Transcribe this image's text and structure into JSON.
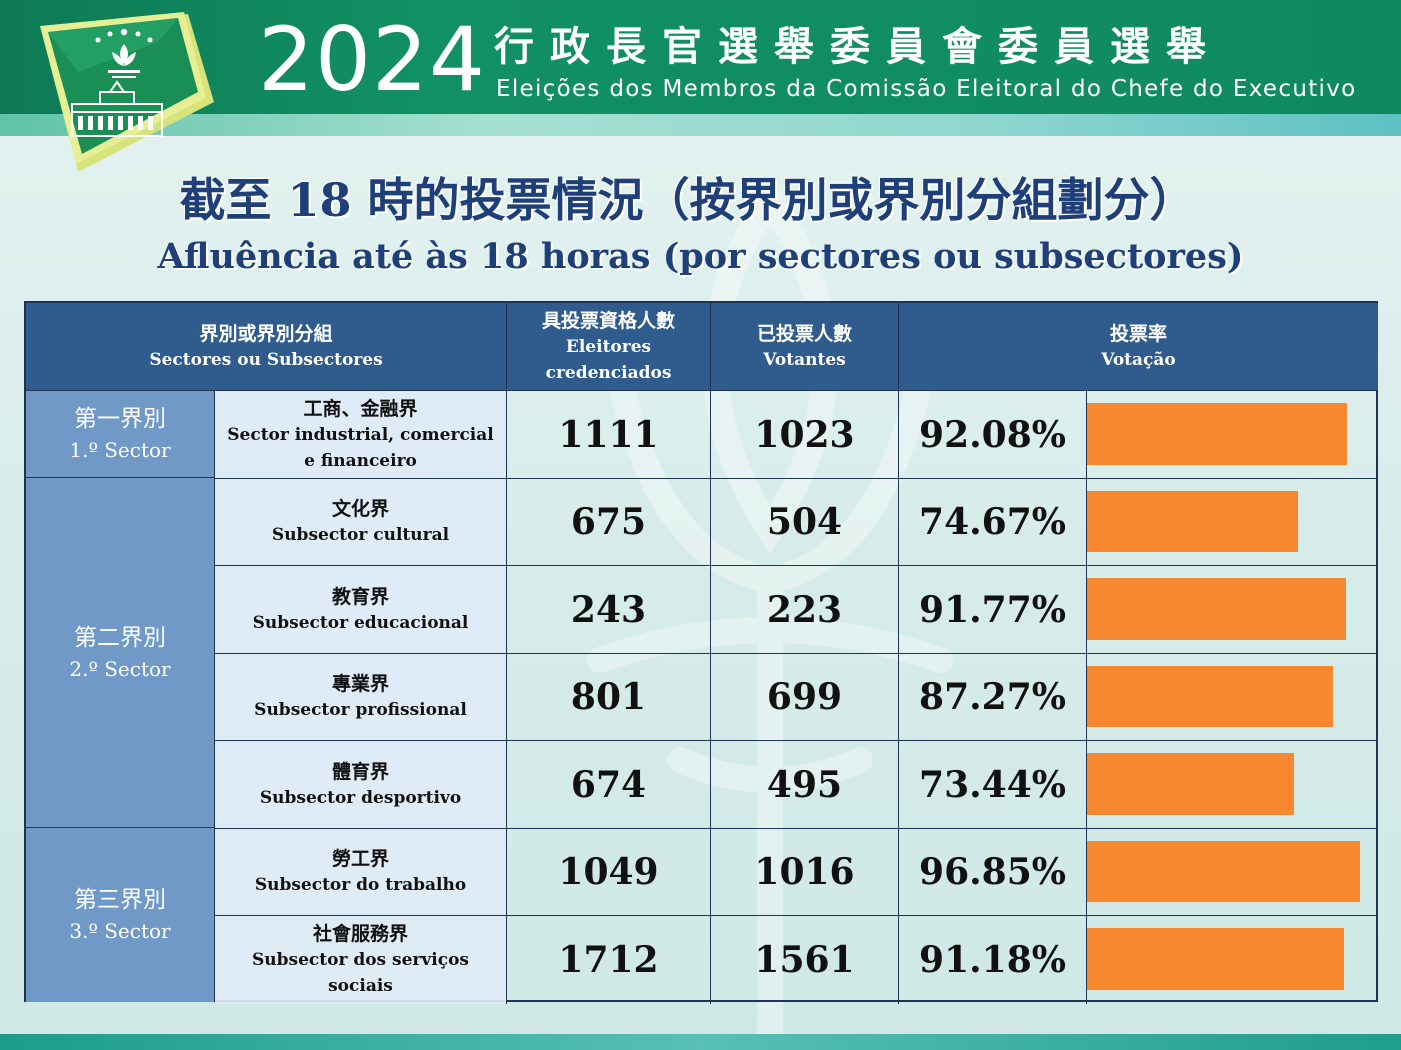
{
  "header": {
    "year": "2024",
    "title_zh": "行政長官選舉委員會委員選舉",
    "title_pt": "Eleições dos Membros da Comissão Eleitoral do Chefe do Executivo"
  },
  "heading": {
    "zh": "截至 18 時的投票情況（按界別或界別分組劃分）",
    "pt": "Afluência até às 18 horas (por sectores ou subsectores)"
  },
  "columns": {
    "sector": {
      "zh": "界別或界別分組",
      "pt": "Sectores ou Subsectores"
    },
    "electors": {
      "zh": "具投票資格人數",
      "pt1": "Eleitores",
      "pt2": "credenciados"
    },
    "voters": {
      "zh": "已投票人數",
      "pt": "Votantes"
    },
    "turnout": {
      "zh": "投票率",
      "pt": "Votação"
    }
  },
  "sectors": [
    {
      "zh": "第一界別",
      "pt": "1.º Sector"
    },
    {
      "zh": "第二界別",
      "pt": "2.º Sector"
    },
    {
      "zh": "第三界別",
      "pt": "3.º Sector"
    }
  ],
  "rows": [
    {
      "zh": "工商、金融界",
      "pt": "Sector industrial, comercial e financeiro",
      "electors": "1111",
      "voters": "1023",
      "rate": "92.08%"
    },
    {
      "zh": "文化界",
      "pt": "Subsector cultural",
      "electors": "675",
      "voters": "504",
      "rate": "74.67%"
    },
    {
      "zh": "教育界",
      "pt": "Subsector educacional",
      "electors": "243",
      "voters": "223",
      "rate": "91.77%"
    },
    {
      "zh": "專業界",
      "pt": "Subsector profissional",
      "electors": "801",
      "voters": "699",
      "rate": "87.27%"
    },
    {
      "zh": "體育界",
      "pt": "Subsector desportivo",
      "electors": "674",
      "voters": "495",
      "rate": "73.44%"
    },
    {
      "zh": "勞工界",
      "pt": "Subsector do trabalho",
      "electors": "1049",
      "voters": "1016",
      "rate": "96.85%"
    },
    {
      "zh": "社會服務界",
      "pt": "Subsector dos serviços sociais",
      "electors": "1712",
      "voters": "1561",
      "rate": "91.18%"
    }
  ],
  "chart_data": {
    "type": "bar",
    "categories": [
      "工商、金融界",
      "文化界",
      "教育界",
      "專業界",
      "體育界",
      "勞工界",
      "社會服務界"
    ],
    "values": [
      92.08,
      74.67,
      91.77,
      87.27,
      73.44,
      96.85,
      91.18
    ],
    "ylim": [
      0,
      100
    ],
    "bar_color": "#f7882f",
    "orientation": "horizontal"
  },
  "colors": {
    "header_green": "#0f8a5f",
    "table_header": "#2f5b8d",
    "sector_cell": "#7099c8",
    "title_navy": "#1f3f78",
    "bar_orange": "#f7882f"
  }
}
